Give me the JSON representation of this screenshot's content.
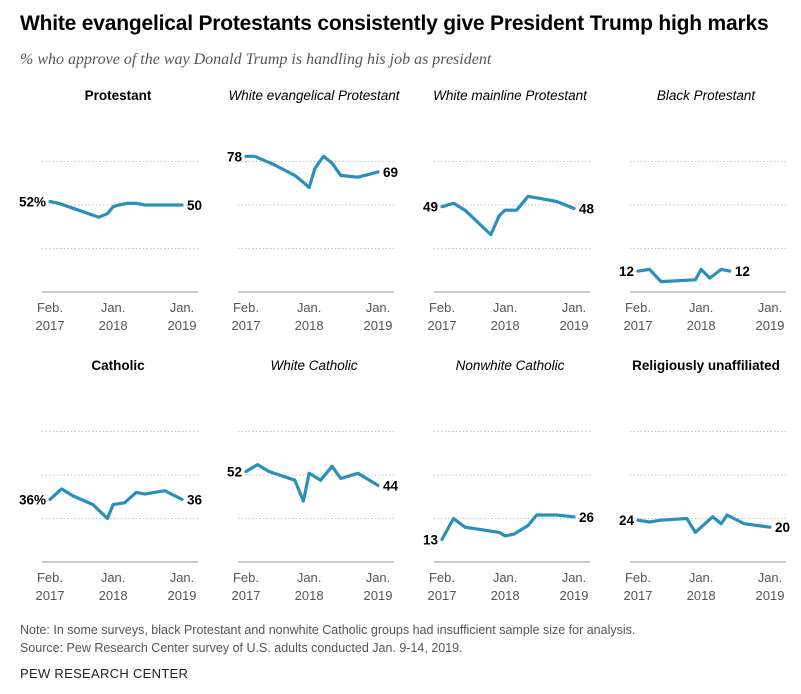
{
  "title": "White evangelical Protestants consistently give President Trump high marks",
  "subtitle": "% who approve of the way Donald Trump is handling his job as president",
  "note": "Note: In some surveys, black Protestant and nonwhite Catholic groups had insufficient sample size for analysis.",
  "source": "Source: Pew Research Center survey of U.S. adults conducted Jan. 9-14, 2019.",
  "brand": "PEW RESEARCH CENTER",
  "colors": {
    "line": "#2a8fbd",
    "grid": "#b5b5b5",
    "axis": "#999999"
  },
  "chart_data": [
    {
      "type": "line",
      "title": "Protestant",
      "title_style": "bold",
      "ylim": [
        0,
        100
      ],
      "x_ticks": [
        {
          "line1": "Feb.",
          "line2": "2017",
          "t": 0
        },
        {
          "line1": "Jan.",
          "line2": "2018",
          "t": 11
        },
        {
          "line1": "Jan.",
          "line2": "2019",
          "t": 23
        }
      ],
      "series": [
        {
          "t": [
            0,
            1.5,
            5,
            8.5,
            10,
            11,
            12,
            13.5,
            15,
            16.5,
            18.5,
            23
          ],
          "values": [
            52,
            51,
            47,
            43,
            45,
            49,
            50,
            51,
            51,
            50,
            50,
            50
          ]
        }
      ],
      "start_label": "52%",
      "end_label": "50"
    },
    {
      "type": "line",
      "title": "White evangelical Protestant",
      "title_style": "italic",
      "ylim": [
        0,
        100
      ],
      "x_ticks": [
        {
          "line1": "Feb.",
          "line2": "2017",
          "t": 0
        },
        {
          "line1": "Jan.",
          "line2": "2018",
          "t": 11
        },
        {
          "line1": "Jan.",
          "line2": "2019",
          "t": 23
        }
      ],
      "series": [
        {
          "t": [
            0,
            1.5,
            5,
            8.5,
            10,
            11,
            12,
            13.5,
            15,
            16.5,
            19.5,
            23
          ],
          "values": [
            78,
            78,
            73,
            67,
            63,
            60,
            71,
            78,
            74,
            67,
            66,
            69
          ]
        }
      ],
      "start_label": "78",
      "end_label": "69"
    },
    {
      "type": "line",
      "title": "White mainline Protestant",
      "title_style": "italic",
      "ylim": [
        0,
        100
      ],
      "x_ticks": [
        {
          "line1": "Feb.",
          "line2": "2017",
          "t": 0
        },
        {
          "line1": "Jan.",
          "line2": "2018",
          "t": 11
        },
        {
          "line1": "Jan.",
          "line2": "2019",
          "t": 23
        }
      ],
      "series": [
        {
          "t": [
            0,
            2,
            4,
            8.5,
            10,
            11,
            13,
            15,
            20,
            23
          ],
          "values": [
            49,
            51,
            47,
            33,
            44,
            47,
            47,
            55,
            52,
            48
          ]
        }
      ],
      "start_label": "49",
      "end_label": "48"
    },
    {
      "type": "line",
      "title": "Black Protestant",
      "title_style": "italic",
      "ylim": [
        0,
        100
      ],
      "x_ticks": [
        {
          "line1": "Feb.",
          "line2": "2017",
          "t": 0
        },
        {
          "line1": "Jan.",
          "line2": "2018",
          "t": 11
        },
        {
          "line1": "Jan.",
          "line2": "2019",
          "t": 23
        }
      ],
      "series": [
        {
          "t": [
            0,
            2,
            4,
            10,
            11,
            12.5,
            14.5,
            16
          ],
          "values": [
            12,
            13,
            6,
            7,
            13,
            8,
            13,
            12
          ]
        }
      ],
      "start_label": "12",
      "end_label": "12"
    },
    {
      "type": "line",
      "title": "Catholic",
      "title_style": "bold",
      "ylim": [
        0,
        100
      ],
      "x_ticks": [
        {
          "line1": "Feb.",
          "line2": "2017",
          "t": 0
        },
        {
          "line1": "Jan.",
          "line2": "2018",
          "t": 11
        },
        {
          "line1": "Jan.",
          "line2": "2019",
          "t": 23
        }
      ],
      "series": [
        {
          "t": [
            0,
            2,
            4,
            7.5,
            10,
            11,
            13,
            15,
            16.5,
            20,
            23
          ],
          "values": [
            36,
            42,
            38,
            33,
            25,
            33,
            34,
            40,
            39,
            41,
            36
          ]
        }
      ],
      "start_label": "36%",
      "end_label": "36"
    },
    {
      "type": "line",
      "title": "White Catholic",
      "title_style": "italic",
      "ylim": [
        0,
        100
      ],
      "x_ticks": [
        {
          "line1": "Feb.",
          "line2": "2017",
          "t": 0
        },
        {
          "line1": "Jan.",
          "line2": "2018",
          "t": 11
        },
        {
          "line1": "Jan.",
          "line2": "2019",
          "t": 23
        }
      ],
      "series": [
        {
          "t": [
            0,
            2,
            4,
            8.5,
            10,
            11,
            13,
            15,
            16.5,
            19.5,
            23
          ],
          "values": [
            52,
            56,
            52,
            47,
            35,
            51,
            47,
            55,
            48,
            51,
            44
          ]
        }
      ],
      "start_label": "52",
      "end_label": "44"
    },
    {
      "type": "line",
      "title": "Nonwhite Catholic",
      "title_style": "italic",
      "ylim": [
        0,
        100
      ],
      "x_ticks": [
        {
          "line1": "Feb.",
          "line2": "2017",
          "t": 0
        },
        {
          "line1": "Jan.",
          "line2": "2018",
          "t": 11
        },
        {
          "line1": "Jan.",
          "line2": "2019",
          "t": 23
        }
      ],
      "series": [
        {
          "t": [
            0,
            2,
            4,
            10,
            11,
            12.5,
            15,
            16.5,
            20,
            23
          ],
          "values": [
            13,
            25,
            20,
            17,
            15,
            16,
            21,
            27,
            27,
            26
          ]
        }
      ],
      "start_label": "13",
      "end_label": "26"
    },
    {
      "type": "line",
      "title": "Religiously unaffiliated",
      "title_style": "bold",
      "ylim": [
        0,
        100
      ],
      "x_ticks": [
        {
          "line1": "Feb.",
          "line2": "2017",
          "t": 0
        },
        {
          "line1": "Jan.",
          "line2": "2018",
          "t": 11
        },
        {
          "line1": "Jan.",
          "line2": "2019",
          "t": 23
        }
      ],
      "series": [
        {
          "t": [
            0,
            2,
            4,
            8.5,
            10,
            11,
            13,
            14.5,
            15.5,
            18.5,
            23
          ],
          "values": [
            24,
            23,
            24,
            25,
            17,
            20,
            26,
            22,
            27,
            22,
            20
          ]
        }
      ],
      "start_label": "24",
      "end_label": "20"
    }
  ]
}
